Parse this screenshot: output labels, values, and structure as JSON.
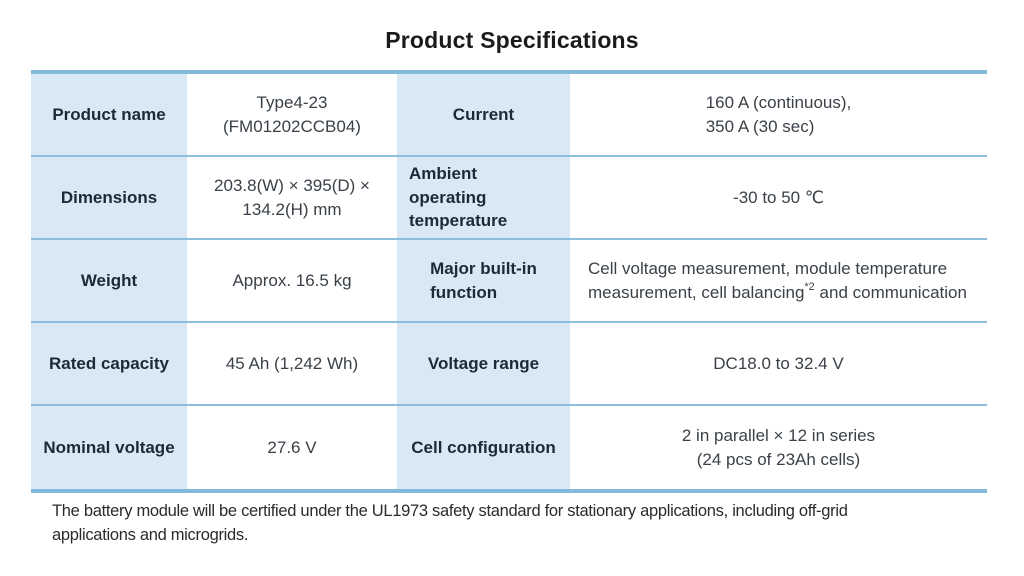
{
  "title": "Product Specifications",
  "colors": {
    "label_bg": "#d8e9f5",
    "border_heavy": "#83b9db",
    "border_light": "#8cbedd"
  },
  "table": {
    "rows": [
      {
        "left_label": "Product name",
        "left_value_lines": [
          "Type4-23",
          "(FM01202CCB04)"
        ],
        "right_label_lines": [
          "Current"
        ],
        "right_value_lines": [
          "160 A (continuous),",
          "350 A (30 sec)"
        ]
      },
      {
        "left_label": "Dimensions",
        "left_value_lines": [
          "203.8(W) × 395(D) ×",
          "134.2(H) mm"
        ],
        "right_label_lines": [
          "Ambient operating",
          "temperature"
        ],
        "right_value_lines": [
          "-30 to 50 ℃"
        ]
      },
      {
        "left_label": "Weight",
        "left_value_lines": [
          "Approx. 16.5 kg"
        ],
        "right_label_lines": [
          "Major built-in",
          "function"
        ],
        "right_value_rich": {
          "prefix": "Cell voltage measurement, module temperature measurement, cell balancing",
          "sup": "*2",
          "suffix": " and communication"
        }
      },
      {
        "left_label": "Rated capacity",
        "left_value_lines": [
          "45 Ah (1,242 Wh)"
        ],
        "right_label_lines": [
          "Voltage range"
        ],
        "right_value_lines": [
          "DC18.0 to 32.4 V"
        ]
      },
      {
        "left_label": "Nominal voltage",
        "left_value_lines": [
          "27.6 V"
        ],
        "right_label_lines": [
          "Cell configuration"
        ],
        "right_value_lines": [
          "2 in parallel × 12 in series",
          "(24 pcs of 23Ah cells)"
        ]
      }
    ]
  },
  "footnote_lines": [
    "The battery module will be certified under the UL1973 safety standard for stationary applications, including off-grid",
    "applications and microgrids."
  ]
}
